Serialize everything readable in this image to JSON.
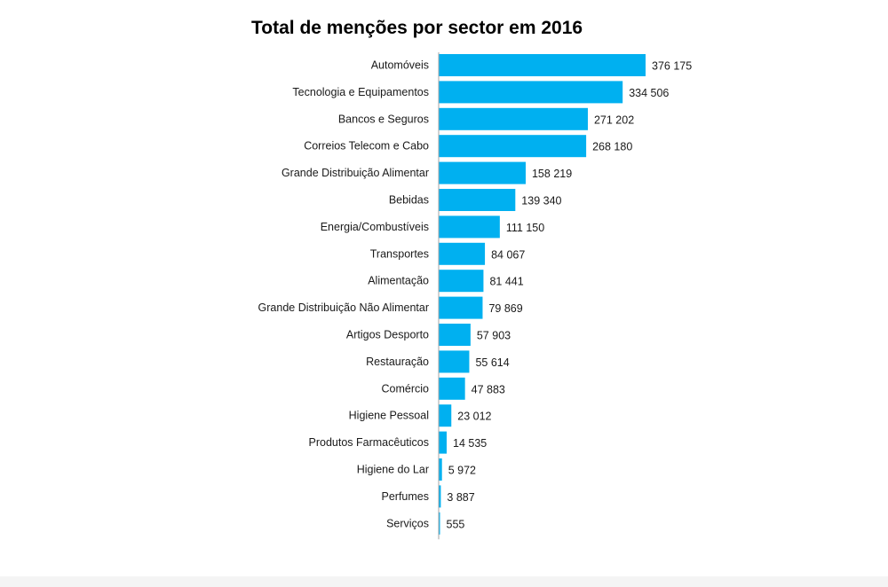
{
  "chart_data": {
    "type": "bar",
    "orientation": "horizontal",
    "title": "Total de menções por sector em 2016",
    "bar_color": "#00b0f0",
    "axis_line_color": "#a6a6a6",
    "categories": [
      "Automóveis",
      "Tecnologia e Equipamentos",
      "Bancos e Seguros",
      "Correios Telecom e Cabo",
      "Grande Distribuição Alimentar",
      "Bebidas",
      "Energia/Combustíveis",
      "Transportes",
      "Alimentação",
      "Grande Distribuição Não Alimentar",
      "Artigos Desporto",
      "Restauração",
      "Comércio",
      "Higiene Pessoal",
      "Produtos Farmacêuticos",
      "Higiene do Lar",
      "Perfumes",
      "Serviços"
    ],
    "values": [
      376175,
      334506,
      271202,
      268180,
      158219,
      139340,
      111150,
      84067,
      81441,
      79869,
      57903,
      55614,
      47883,
      23012,
      14535,
      5972,
      3887,
      555
    ],
    "value_labels": [
      "376 175",
      "334 506",
      "271 202",
      "268 180",
      "158 219",
      "139 340",
      "111 150",
      "84 067",
      "81 441",
      "79 869",
      "57 903",
      "55 614",
      "47 883",
      "23 012",
      "14 535",
      "5 972",
      "3 887",
      "555"
    ],
    "xlim": [
      0,
      376175
    ],
    "grid": false,
    "legend": "none",
    "xlabel": "",
    "ylabel": ""
  }
}
